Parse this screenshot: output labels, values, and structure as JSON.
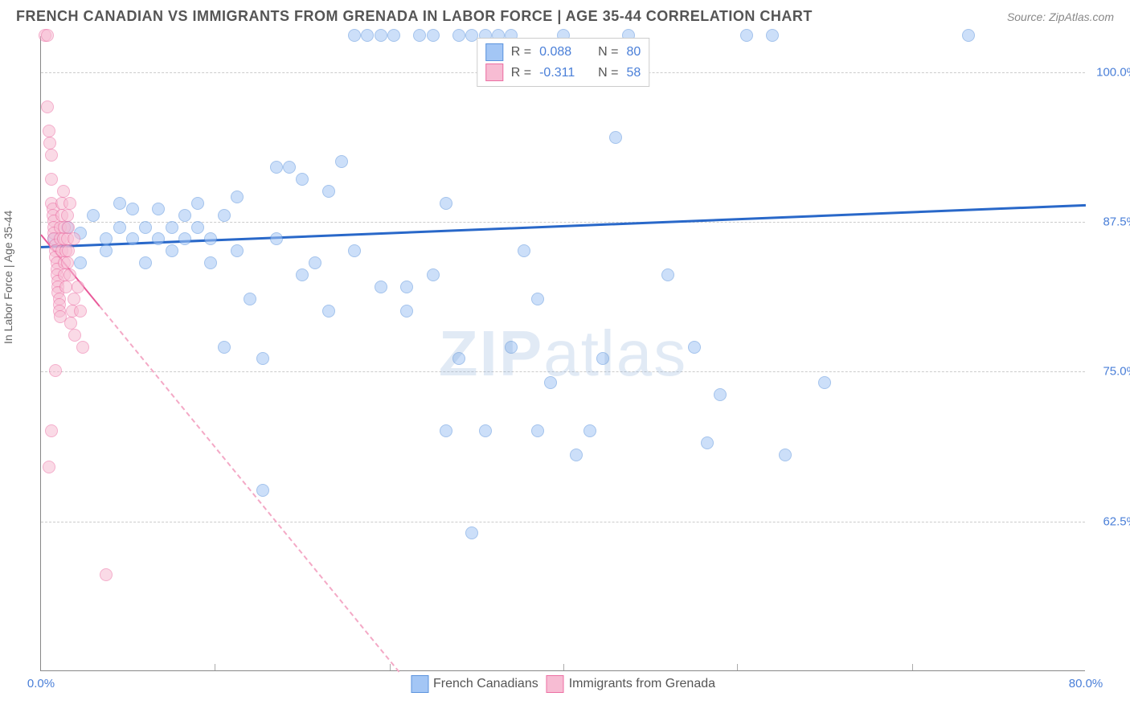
{
  "title": "FRENCH CANADIAN VS IMMIGRANTS FROM GRENADA IN LABOR FORCE | AGE 35-44 CORRELATION CHART",
  "source": "Source: ZipAtlas.com",
  "ylabel": "In Labor Force | Age 35-44",
  "watermark_a": "ZIP",
  "watermark_b": "atlas",
  "chart": {
    "type": "scatter",
    "xlim": [
      0,
      80
    ],
    "ylim": [
      50,
      103
    ],
    "yticks": [
      {
        "v": 62.5,
        "label": "62.5%"
      },
      {
        "v": 75.0,
        "label": "75.0%"
      },
      {
        "v": 87.5,
        "label": "87.5%"
      },
      {
        "v": 100.0,
        "label": "100.0%"
      }
    ],
    "xticks": [
      {
        "v": 0,
        "label": "0.0%"
      },
      {
        "v": 13.3,
        "label": ""
      },
      {
        "v": 26.7,
        "label": ""
      },
      {
        "v": 40,
        "label": ""
      },
      {
        "v": 53.3,
        "label": ""
      },
      {
        "v": 66.7,
        "label": ""
      },
      {
        "v": 80,
        "label": "80.0%"
      }
    ],
    "background_color": "#ffffff",
    "grid_color": "#cccccc",
    "marker_size": 16,
    "series": [
      {
        "name": "French Canadians",
        "color_fill": "#a3c6f5",
        "color_stroke": "#5b93dd",
        "R": "0.088",
        "N": "80",
        "trend": {
          "y_at_x0": 85.5,
          "y_at_xmax": 89.0,
          "line_color": "#2968c9",
          "width": 3
        },
        "points": [
          [
            1,
            86
          ],
          [
            2,
            87
          ],
          [
            3,
            84
          ],
          [
            3,
            86.5
          ],
          [
            4,
            88
          ],
          [
            5,
            86
          ],
          [
            5,
            85
          ],
          [
            6,
            89
          ],
          [
            6,
            87
          ],
          [
            7,
            86
          ],
          [
            7,
            88.5
          ],
          [
            8,
            84
          ],
          [
            8,
            87
          ],
          [
            9,
            88.5
          ],
          [
            9,
            86
          ],
          [
            10,
            85
          ],
          [
            10,
            87
          ],
          [
            11,
            88
          ],
          [
            11,
            86
          ],
          [
            12,
            87
          ],
          [
            12,
            89
          ],
          [
            13,
            86
          ],
          [
            13,
            84
          ],
          [
            14,
            88
          ],
          [
            14,
            77
          ],
          [
            15,
            89.5
          ],
          [
            15,
            85
          ],
          [
            16,
            81
          ],
          [
            17,
            76
          ],
          [
            17,
            65
          ],
          [
            18,
            92
          ],
          [
            18,
            86
          ],
          [
            19,
            92
          ],
          [
            20,
            91
          ],
          [
            20,
            83
          ],
          [
            21,
            84
          ],
          [
            22,
            80
          ],
          [
            22,
            90
          ],
          [
            23,
            92.5
          ],
          [
            24,
            85
          ],
          [
            24,
            103
          ],
          [
            25,
            103
          ],
          [
            26,
            82
          ],
          [
            26,
            103
          ],
          [
            27,
            103
          ],
          [
            28,
            80
          ],
          [
            28,
            82
          ],
          [
            29,
            103
          ],
          [
            30,
            103
          ],
          [
            30,
            83
          ],
          [
            31,
            70
          ],
          [
            31,
            89
          ],
          [
            32,
            76
          ],
          [
            32,
            103
          ],
          [
            33,
            61.5
          ],
          [
            33,
            103
          ],
          [
            34,
            70
          ],
          [
            34,
            103
          ],
          [
            35,
            103
          ],
          [
            36,
            77
          ],
          [
            36,
            103
          ],
          [
            37,
            85
          ],
          [
            38,
            81
          ],
          [
            38,
            70
          ],
          [
            39,
            74
          ],
          [
            40,
            103
          ],
          [
            41,
            68
          ],
          [
            42,
            70
          ],
          [
            43,
            76
          ],
          [
            44,
            94.5
          ],
          [
            45,
            103
          ],
          [
            48,
            83
          ],
          [
            50,
            77
          ],
          [
            51,
            69
          ],
          [
            52,
            73
          ],
          [
            54,
            103
          ],
          [
            56,
            103
          ],
          [
            57,
            68
          ],
          [
            60,
            74
          ],
          [
            71,
            103
          ]
        ]
      },
      {
        "name": "Immigrants from Grenada",
        "color_fill": "#f7bcd3",
        "color_stroke": "#ec6fa3",
        "R": "-0.311",
        "N": "58",
        "trend": {
          "y_at_x0": 86.5,
          "y_at_xmax": -20,
          "line_color": "#e95a9a",
          "width": 2.5,
          "solid_until_x": 4.5
        },
        "points": [
          [
            0.3,
            103
          ],
          [
            0.5,
            103
          ],
          [
            0.5,
            97
          ],
          [
            0.6,
            95
          ],
          [
            0.7,
            94
          ],
          [
            0.8,
            93
          ],
          [
            0.8,
            91
          ],
          [
            0.8,
            89
          ],
          [
            0.9,
            88.5
          ],
          [
            0.9,
            88
          ],
          [
            1,
            87.5
          ],
          [
            1,
            87
          ],
          [
            1,
            86.5
          ],
          [
            1,
            86
          ],
          [
            1.1,
            85.5
          ],
          [
            1.1,
            85
          ],
          [
            1.1,
            84.5
          ],
          [
            1.2,
            84
          ],
          [
            1.2,
            83.5
          ],
          [
            1.2,
            83
          ],
          [
            1.3,
            82.5
          ],
          [
            1.3,
            82
          ],
          [
            1.3,
            81.5
          ],
          [
            1.4,
            81
          ],
          [
            1.4,
            80.5
          ],
          [
            1.4,
            80
          ],
          [
            1.5,
            79.5
          ],
          [
            1.5,
            87
          ],
          [
            1.5,
            86
          ],
          [
            1.6,
            85
          ],
          [
            1.6,
            88
          ],
          [
            1.6,
            89
          ],
          [
            1.7,
            90
          ],
          [
            1.7,
            86
          ],
          [
            1.8,
            87
          ],
          [
            1.8,
            84
          ],
          [
            1.8,
            83
          ],
          [
            1.9,
            82
          ],
          [
            1.9,
            85
          ],
          [
            2,
            86
          ],
          [
            2,
            84
          ],
          [
            2,
            88
          ],
          [
            2.1,
            87
          ],
          [
            2.1,
            85
          ],
          [
            2.2,
            83
          ],
          [
            2.2,
            89
          ],
          [
            2.3,
            79
          ],
          [
            2.4,
            80
          ],
          [
            2.5,
            86
          ],
          [
            2.5,
            81
          ],
          [
            2.6,
            78
          ],
          [
            2.8,
            82
          ],
          [
            3,
            80
          ],
          [
            3.2,
            77
          ],
          [
            0.8,
            70
          ],
          [
            0.6,
            67
          ],
          [
            1.1,
            75
          ],
          [
            5,
            58
          ]
        ]
      }
    ],
    "legend_bottom": [
      {
        "swatch": "blue",
        "label": "French Canadians"
      },
      {
        "swatch": "pink",
        "label": "Immigrants from Grenada"
      }
    ]
  }
}
